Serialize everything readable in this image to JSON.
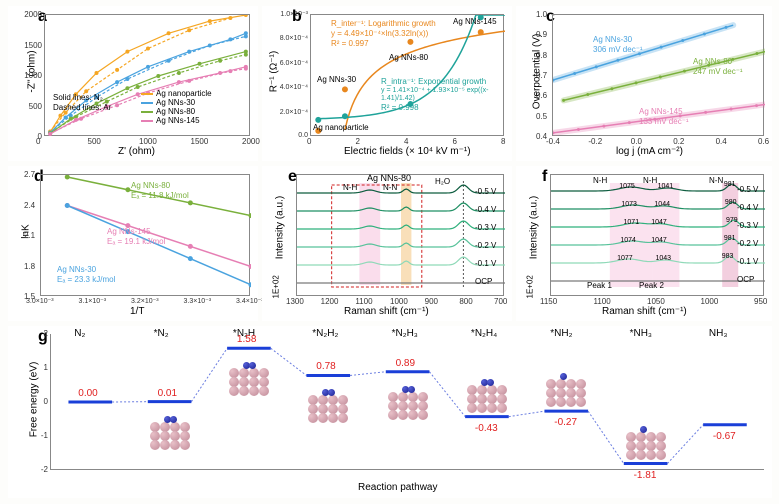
{
  "figure": {
    "background": "#fdfdfb",
    "size": [
      779,
      504
    ]
  },
  "panels": {
    "a": {
      "label": "a",
      "xlabel": "Z' (ohm)",
      "ylabel": "-Z'' (ohm)",
      "xlim": [
        0,
        2000
      ],
      "xtick_step": 500,
      "ylim": [
        0,
        2000
      ],
      "ytick_step": 500,
      "note_solid": "Solid lines: N₂",
      "note_dashed": "Dashed lines: Ar",
      "legend": [
        {
          "label": "Ag nanoparticle",
          "color": "#f5a623"
        },
        {
          "label": "Ag NNs-30",
          "color": "#4aa3df"
        },
        {
          "label": "Ag NNs-80",
          "color": "#7ab03c"
        },
        {
          "label": "Ag NNs-145",
          "color": "#e67fb4"
        }
      ],
      "series_solid": [
        {
          "color": "#f5a623",
          "points": [
            [
              50,
              80
            ],
            [
              150,
              350
            ],
            [
              300,
              700
            ],
            [
              500,
              1050
            ],
            [
              800,
              1400
            ],
            [
              1200,
              1700
            ],
            [
              1600,
              1900
            ],
            [
              1950,
              2000
            ]
          ]
        },
        {
          "color": "#4aa3df",
          "points": [
            [
              50,
              70
            ],
            [
              200,
              320
            ],
            [
              400,
              600
            ],
            [
              700,
              900
            ],
            [
              1000,
              1150
            ],
            [
              1400,
              1400
            ],
            [
              1800,
              1600
            ],
            [
              1950,
              1700
            ]
          ]
        },
        {
          "color": "#7ab03c",
          "points": [
            [
              50,
              60
            ],
            [
              250,
              300
            ],
            [
              500,
              550
            ],
            [
              800,
              800
            ],
            [
              1100,
              1000
            ],
            [
              1500,
              1200
            ],
            [
              1950,
              1400
            ]
          ]
        },
        {
          "color": "#e67fb4",
          "points": [
            [
              50,
              50
            ],
            [
              300,
              280
            ],
            [
              600,
              500
            ],
            [
              900,
              700
            ],
            [
              1300,
              900
            ],
            [
              1700,
              1050
            ],
            [
              1950,
              1150
            ]
          ]
        }
      ],
      "series_dashed": [
        {
          "color": "#f5a623",
          "points": [
            [
              50,
              90
            ],
            [
              200,
              400
            ],
            [
              400,
              750
            ],
            [
              700,
              1100
            ],
            [
              1000,
              1450
            ],
            [
              1400,
              1750
            ],
            [
              1800,
              1950
            ]
          ]
        },
        {
          "color": "#4aa3df",
          "points": [
            [
              50,
              80
            ],
            [
              250,
              350
            ],
            [
              500,
              650
            ],
            [
              800,
              950
            ],
            [
              1200,
              1250
            ],
            [
              1600,
              1500
            ],
            [
              1950,
              1650
            ]
          ]
        },
        {
          "color": "#7ab03c",
          "points": [
            [
              50,
              70
            ],
            [
              300,
              330
            ],
            [
              600,
              580
            ],
            [
              900,
              820
            ],
            [
              1300,
              1050
            ],
            [
              1700,
              1250
            ],
            [
              1950,
              1350
            ]
          ]
        },
        {
          "color": "#e67fb4",
          "points": [
            [
              50,
              60
            ],
            [
              350,
              300
            ],
            [
              700,
              520
            ],
            [
              1000,
              720
            ],
            [
              1400,
              920
            ],
            [
              1800,
              1080
            ],
            [
              1950,
              1120
            ]
          ]
        }
      ]
    },
    "b": {
      "label": "b",
      "xlabel": "Electric fields (× 10⁴ kV m⁻¹)",
      "ylabel": "R⁻¹ (Ω⁻¹)",
      "xlim": [
        0,
        8
      ],
      "xtick_step": 2,
      "ylim": [
        0,
        0.001
      ],
      "yticks": [
        "0.0",
        "2.0×10⁻⁴",
        "4.0×10⁻⁴",
        "6.0×10⁻⁴",
        "8.0×10⁻⁴",
        "1.0×10⁻³"
      ],
      "point_labels": [
        "Ag nanoparticle",
        "Ag NNs-30",
        "Ag NNs-80",
        "Ag NNs-145"
      ],
      "curve_orange_label": "R_inter⁻¹: Logarithmic growth",
      "curve_orange_eq": "y = 4.49×10⁻⁴×ln(3.32ln(x))",
      "curve_orange_r2": "R² = 0.997",
      "curve_teal_label": "R_intra⁻¹: Exponential growth",
      "curve_teal_eq": "y = 1.41×10⁻⁴ + 1.93×10⁻⁵ exp((x-1.41)/1.42)",
      "curve_teal_r2": "R² = 0.998",
      "orange": {
        "color": "#e8871e",
        "points": [
          [
            0.3,
            5e-05
          ],
          [
            1.4,
            0.00039
          ],
          [
            4.1,
            0.00078
          ],
          [
            7.0,
            0.00086
          ]
        ]
      },
      "teal": {
        "color": "#1fa39a",
        "points": [
          [
            0.3,
            0.00014
          ],
          [
            1.4,
            0.00017
          ],
          [
            4.1,
            0.00027
          ],
          [
            7.0,
            0.00098
          ]
        ]
      }
    },
    "c": {
      "label": "c",
      "xlabel": "log j (mA cm⁻²)",
      "ylabel": "Overpotential (V)",
      "xlim": [
        -0.4,
        0.6
      ],
      "xtick_step": 0.2,
      "ylim": [
        0.4,
        1.0
      ],
      "ytick_step": 0.1,
      "lines": [
        {
          "label": "Ag NNs-30",
          "slope": "306 mV dec⁻¹",
          "color": "#4aa3df",
          "p1": [
            -0.4,
            0.68
          ],
          "p2": [
            0.45,
            0.95
          ]
        },
        {
          "label": "Ag NNs-80",
          "slope": "247 mV dec⁻¹",
          "color": "#7ab03c",
          "p1": [
            -0.35,
            0.58
          ],
          "p2": [
            0.6,
            0.82
          ]
        },
        {
          "label": "Ag NNs-145",
          "slope": "133 mV dec⁻¹",
          "color": "#e67fb4",
          "p1": [
            -0.4,
            0.42
          ],
          "p2": [
            0.6,
            0.56
          ]
        }
      ]
    },
    "d": {
      "label": "d",
      "xlabel": "1/T",
      "ylabel": "lnK",
      "xlim": [
        0.003,
        0.0034
      ],
      "xticks": [
        "3.0×10⁻³",
        "3.1×10⁻³",
        "3.2×10⁻³",
        "3.3×10⁻³",
        "3.4×10⁻³"
      ],
      "ylim": [
        1.5,
        2.7
      ],
      "ytick_step": 0.3,
      "lines": [
        {
          "label": "Ag NNs-80",
          "ea": "Eₐ = 11.8 kJ/mol",
          "color": "#7ab03c",
          "p1": [
            0.00305,
            2.68
          ],
          "p2": [
            0.0034,
            2.3
          ]
        },
        {
          "label": "Ag NNs-145",
          "ea": "Eₐ = 19.1 kJ/mol",
          "color": "#e67fb4",
          "p1": [
            0.00305,
            2.4
          ],
          "p2": [
            0.0034,
            1.8
          ]
        },
        {
          "label": "Ag NNs-30",
          "ea": "Eₐ = 23.3 kJ/mol",
          "color": "#4aa3df",
          "p1": [
            0.00305,
            2.4
          ],
          "p2": [
            0.0034,
            1.62
          ]
        }
      ]
    },
    "e": {
      "label": "e",
      "xlabel": "Raman shift (cm⁻¹)",
      "ylabel": "Intensity (a.u.)",
      "ylabel2": "1E+02",
      "title": "Ag NNs-80",
      "xlim": [
        1300,
        700
      ],
      "xtick_step": 100,
      "band_nh": "N-H",
      "band_nn": "N-N",
      "band_h2o": "H₂O",
      "potentials": [
        "-0.5 V",
        "-0.4 V",
        "-0.3 V",
        "-0.2 V",
        "-0.1 V",
        "OCP"
      ],
      "colors": [
        "#0d5c3f",
        "#1f8f63",
        "#2fb07c",
        "#57c29a",
        "#8fd9b8",
        "#7a7a7a"
      ],
      "nh_band_color": "#f7c6e0",
      "nn_band_color": "#f5c98a",
      "h2o_line": "#555"
    },
    "f": {
      "label": "f",
      "xlabel": "Raman shift (cm⁻¹)",
      "ylabel": "Intensity (a.u.)",
      "ylabel2": "1E+02",
      "xlim": [
        1150,
        950
      ],
      "xtick_step": 50,
      "bands": [
        "N-H",
        "N-H",
        "N-N"
      ],
      "peak_labels": [
        "Peak 1",
        "Peak 2"
      ],
      "potentials": [
        "-0.5 V",
        "-0.4 V",
        "-0.3 V",
        "-0.2 V",
        "-0.1 V",
        "OCP"
      ],
      "colors": [
        "#0d5c3f",
        "#1f8f63",
        "#2fb07c",
        "#57c29a",
        "#8fd9b8",
        "#7a7a7a"
      ],
      "nh_values": [
        [
          1075,
          1041
        ],
        [
          1073,
          1044
        ],
        [
          1071,
          1047
        ],
        [
          1074,
          1047
        ],
        [
          1077,
          1043
        ]
      ],
      "nn_values": [
        981,
        980,
        979,
        981,
        983
      ],
      "nh_fill": "#f7c6e0",
      "nn_fill": "#e8a0c0"
    },
    "g": {
      "label": "g",
      "xlabel": "Reaction pathway",
      "ylabel": "Free energy (eV)",
      "ylim": [
        -2,
        2
      ],
      "ytick_step": 1,
      "species": [
        "N₂",
        "*N₂",
        "*N₂H",
        "*N₂H₂",
        "*N₂H₃",
        "*N₂H₄",
        "*NH₂",
        "*NH₃",
        "NH₃"
      ],
      "energies": [
        0.0,
        0.01,
        1.58,
        0.78,
        0.89,
        -0.43,
        -0.27,
        -1.81,
        -0.67
      ],
      "level_color": "#1a3fd8",
      "connect_color": "#6a7de0",
      "value_color": "#e02020",
      "surface_color": "#d9a8b4",
      "n_color": "#2030c0",
      "h_color": "#eeeeee"
    }
  }
}
